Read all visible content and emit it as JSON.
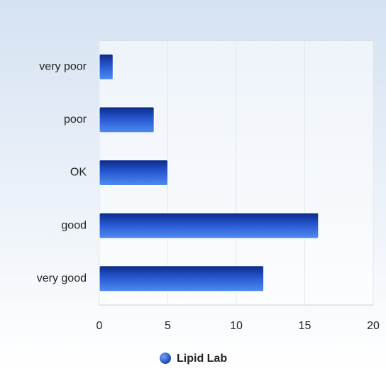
{
  "chart_data": {
    "type": "bar",
    "orientation": "horizontal",
    "categories": [
      "very poor",
      "poor",
      "OK",
      "good",
      "very good"
    ],
    "series": [
      {
        "name": "Lipid Lab",
        "color": "#2a5bd7",
        "values": [
          1,
          4,
          5,
          16,
          12
        ]
      }
    ],
    "xlim": [
      0,
      20
    ],
    "xticks": [
      0,
      5,
      10,
      15,
      20
    ],
    "grid": true,
    "legend": "bottom"
  }
}
